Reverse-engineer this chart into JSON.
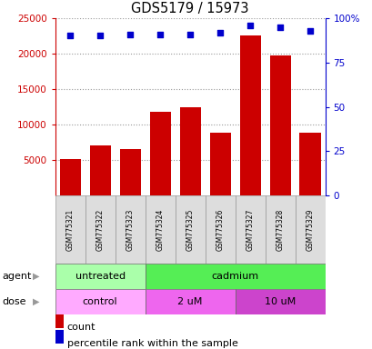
{
  "title": "GDS5179 / 15973",
  "samples": [
    "GSM775321",
    "GSM775322",
    "GSM775323",
    "GSM775324",
    "GSM775325",
    "GSM775326",
    "GSM775327",
    "GSM775328",
    "GSM775329"
  ],
  "counts": [
    5100,
    7100,
    6500,
    11800,
    12400,
    8900,
    22500,
    19700,
    8900
  ],
  "percentile_ranks": [
    90,
    90,
    91,
    91,
    91,
    92,
    96,
    95,
    93
  ],
  "bar_color": "#cc0000",
  "dot_color": "#0000cc",
  "ylim_left": [
    0,
    25000
  ],
  "ylim_right": [
    0,
    100
  ],
  "yticks_left": [
    5000,
    10000,
    15000,
    20000,
    25000
  ],
  "yticks_right": [
    0,
    25,
    50,
    75,
    100
  ],
  "agent_groups": [
    {
      "label": "untreated",
      "start": 0,
      "end": 3,
      "color": "#aaffaa"
    },
    {
      "label": "cadmium",
      "start": 3,
      "end": 9,
      "color": "#55ee55"
    }
  ],
  "dose_colors_list": [
    "#ffaaff",
    "#ee66ee",
    "#cc44cc"
  ],
  "dose_groups": [
    {
      "label": "control",
      "start": 0,
      "end": 3
    },
    {
      "label": "2 uM",
      "start": 3,
      "end": 6
    },
    {
      "label": "10 uM",
      "start": 6,
      "end": 9
    }
  ],
  "left_axis_color": "#cc0000",
  "right_axis_color": "#0000cc",
  "grid_color": "#999999",
  "background_color": "#ffffff",
  "sample_box_color": "#dddddd",
  "sample_box_edge": "#999999",
  "agent_label": "agent",
  "dose_label": "dose",
  "legend_count_label": "count",
  "legend_percentile_label": "percentile rank within the sample",
  "arrow_color": "#999999"
}
